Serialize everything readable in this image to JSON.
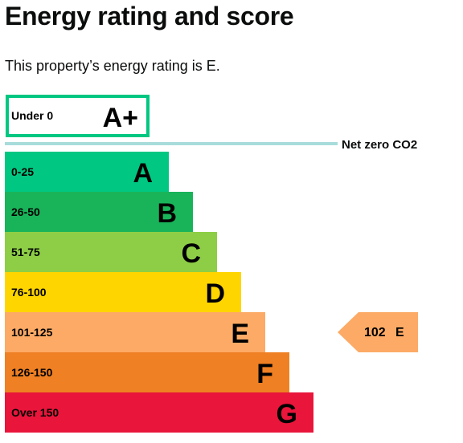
{
  "page": {
    "title": "Energy rating and score",
    "intro": "This property’s energy rating is E."
  },
  "chart_data": {
    "type": "bar",
    "categories": [
      "A+",
      "A",
      "B",
      "C",
      "D",
      "E",
      "F",
      "G"
    ],
    "bands": [
      {
        "letter": "A+",
        "range": "Under 0",
        "color": "#ffffff",
        "border": "#00c781",
        "letter_color": "#000000"
      },
      {
        "letter": "A",
        "range": "0-25",
        "color": "#00c781",
        "letter_color": "#000000"
      },
      {
        "letter": "B",
        "range": "26-50",
        "color": "#19b459",
        "letter_color": "#000000"
      },
      {
        "letter": "C",
        "range": "51-75",
        "color": "#8dce46",
        "letter_color": "#000000"
      },
      {
        "letter": "D",
        "range": "76-100",
        "color": "#ffd500",
        "letter_color": "#000000"
      },
      {
        "letter": "E",
        "range": "101-125",
        "color": "#fcaa65",
        "letter_color": "#000000"
      },
      {
        "letter": "F",
        "range": "126-150",
        "color": "#ef8023",
        "letter_color": "#000000"
      },
      {
        "letter": "G",
        "range": "Over 150",
        "color": "#e9153b",
        "letter_color": "#000000"
      }
    ],
    "net_zero": {
      "label": "Net zero CO2",
      "color": "#a8dcdb"
    },
    "current": {
      "score": 102,
      "letter": "E",
      "score_label": "102",
      "letter_label": "E",
      "color": "#fcaa65"
    }
  }
}
